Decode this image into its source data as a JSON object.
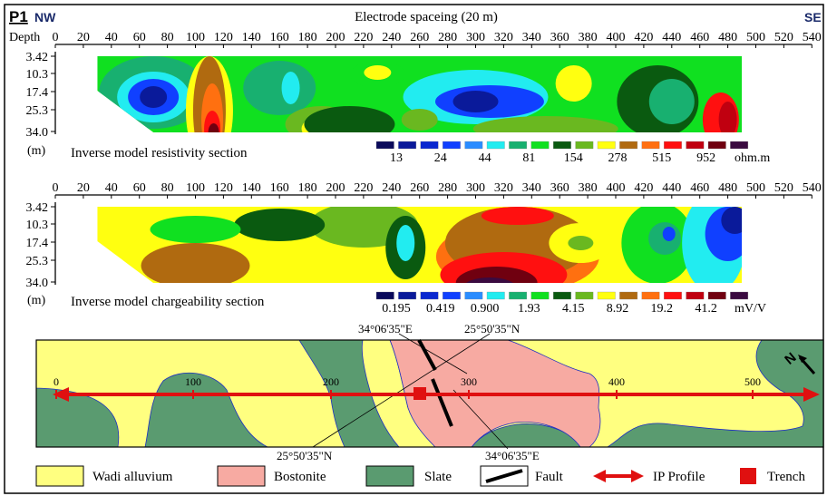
{
  "header": {
    "profile": "P1",
    "left_dir": "NW",
    "right_dir": "SE",
    "axis_title": "Electrode spaceing (20 m)",
    "depth_label": "Depth",
    "depth_unit": "(m)"
  },
  "x_ticks": [
    "0",
    "20",
    "40",
    "60",
    "80",
    "100",
    "120",
    "140",
    "160",
    "180",
    "200",
    "220",
    "240",
    "260",
    "280",
    "300",
    "320",
    "340",
    "360",
    "380",
    "400",
    "420",
    "440",
    "460",
    "480",
    "500",
    "520",
    "540"
  ],
  "depth_ticks": [
    "3.42",
    "10.3",
    "17.4",
    "25.3",
    "34.0"
  ],
  "resistivity": {
    "title": "Inverse model resistivity section",
    "labels": [
      "13",
      "24",
      "44",
      "81",
      "154",
      "278",
      "515",
      "952"
    ],
    "unit": "ohm.m"
  },
  "chargeability": {
    "title": "Inverse model chargeability section",
    "labels": [
      "0.195",
      "0.419",
      "0.900",
      "1.93",
      "4.15",
      "8.92",
      "19.2",
      "41.2"
    ],
    "unit": "mV/V"
  },
  "palette": [
    "#0a0a5a",
    "#0a1a9a",
    "#0a28d0",
    "#1040ff",
    "#2a8cff",
    "#22ecf0",
    "#18b070",
    "#10e020",
    "#0a5a10",
    "#6ab820",
    "#ffff10",
    "#b06a10",
    "#ff7010",
    "#ff1010",
    "#c00010",
    "#700010",
    "#3a0a40"
  ],
  "map": {
    "scale": [
      "0",
      "100",
      "200",
      "300",
      "400",
      "500"
    ],
    "coords": {
      "top_e": "34°06'35\"E",
      "top_n": "25°50'35\"N",
      "bottom_n": "25°50'35\"N",
      "bottom_e": "34°06'35\"E"
    },
    "north": "N"
  },
  "legend": [
    {
      "label": "Wadi alluvium",
      "color": "#ffff80"
    },
    {
      "label": "Bostonite",
      "color": "#f7aaa2"
    },
    {
      "label": "Slate",
      "color": "#5a9b70"
    },
    {
      "label": "Fault"
    },
    {
      "label": "IP Profile"
    },
    {
      "label": "Trench"
    }
  ]
}
